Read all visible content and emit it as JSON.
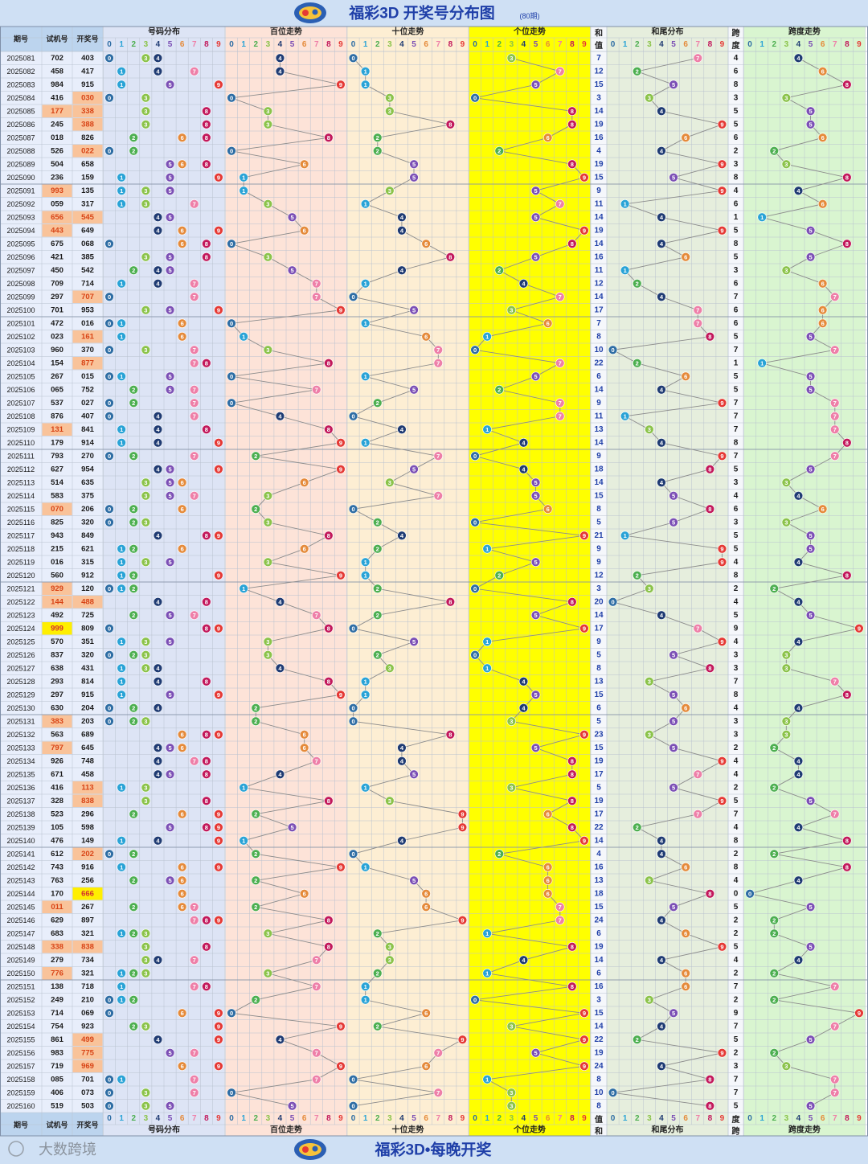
{
  "page": {
    "title": "福彩3D 开奖号分布图",
    "subtitle": "(80期)",
    "footer_title": "福彩3D•每晚开奖",
    "watermark": "大数跨境"
  },
  "chart_data": {
    "type": "table",
    "columns": {
      "issue": "期号",
      "test": "试机号",
      "draw": "开奖号",
      "dist": "号码分布",
      "bai": "百位走势",
      "shi": "十位走势",
      "ge": "个位走势",
      "sum_a": "和",
      "sum_b": "值",
      "tail": "和尾分布",
      "span_a": "跨",
      "span_b": "度",
      "span_trend": "跨度走势"
    },
    "digits": [
      "0",
      "1",
      "2",
      "3",
      "4",
      "5",
      "6",
      "7",
      "8",
      "9"
    ],
    "rows": [
      [
        "2025081",
        "702",
        "403"
      ],
      [
        "2025082",
        "458",
        "417"
      ],
      [
        "2025083",
        "984",
        "915"
      ],
      [
        "2025084",
        "416",
        "030"
      ],
      [
        "2025085",
        "177",
        "338"
      ],
      [
        "2025086",
        "245",
        "388"
      ],
      [
        "2025087",
        "018",
        "826"
      ],
      [
        "2025088",
        "526",
        "022"
      ],
      [
        "2025089",
        "504",
        "658"
      ],
      [
        "2025090",
        "236",
        "159"
      ],
      [
        "2025091",
        "993",
        "135"
      ],
      [
        "2025092",
        "059",
        "317"
      ],
      [
        "2025093",
        "656",
        "545"
      ],
      [
        "2025094",
        "443",
        "649"
      ],
      [
        "2025095",
        "675",
        "068"
      ],
      [
        "2025096",
        "421",
        "385"
      ],
      [
        "2025097",
        "450",
        "542"
      ],
      [
        "2025098",
        "709",
        "714"
      ],
      [
        "2025099",
        "297",
        "707"
      ],
      [
        "2025100",
        "701",
        "953"
      ],
      [
        "2025101",
        "472",
        "016"
      ],
      [
        "2025102",
        "023",
        "161"
      ],
      [
        "2025103",
        "960",
        "370"
      ],
      [
        "2025104",
        "154",
        "877"
      ],
      [
        "2025105",
        "267",
        "015"
      ],
      [
        "2025106",
        "065",
        "752"
      ],
      [
        "2025107",
        "537",
        "027"
      ],
      [
        "2025108",
        "876",
        "407"
      ],
      [
        "2025109",
        "131",
        "841"
      ],
      [
        "2025110",
        "179",
        "914"
      ],
      [
        "2025111",
        "793",
        "270"
      ],
      [
        "2025112",
        "627",
        "954"
      ],
      [
        "2025113",
        "514",
        "635"
      ],
      [
        "2025114",
        "583",
        "375"
      ],
      [
        "2025115",
        "070",
        "206"
      ],
      [
        "2025116",
        "825",
        "320"
      ],
      [
        "2025117",
        "943",
        "849"
      ],
      [
        "2025118",
        "215",
        "621"
      ],
      [
        "2025119",
        "016",
        "315"
      ],
      [
        "2025120",
        "560",
        "912"
      ],
      [
        "2025121",
        "929",
        "120"
      ],
      [
        "2025122",
        "144",
        "488"
      ],
      [
        "2025123",
        "492",
        "725"
      ],
      [
        "2025124",
        "999",
        "809"
      ],
      [
        "2025125",
        "570",
        "351"
      ],
      [
        "2025126",
        "837",
        "320"
      ],
      [
        "2025127",
        "638",
        "431"
      ],
      [
        "2025128",
        "293",
        "814"
      ],
      [
        "2025129",
        "297",
        "915"
      ],
      [
        "2025130",
        "630",
        "204"
      ],
      [
        "2025131",
        "383",
        "203"
      ],
      [
        "2025132",
        "563",
        "689"
      ],
      [
        "2025133",
        "797",
        "645"
      ],
      [
        "2025134",
        "926",
        "748"
      ],
      [
        "2025135",
        "671",
        "458"
      ],
      [
        "2025136",
        "416",
        "113"
      ],
      [
        "2025137",
        "328",
        "838"
      ],
      [
        "2025138",
        "523",
        "296"
      ],
      [
        "2025139",
        "105",
        "598"
      ],
      [
        "2025140",
        "476",
        "149"
      ],
      [
        "2025141",
        "612",
        "202"
      ],
      [
        "2025142",
        "743",
        "916"
      ],
      [
        "2025143",
        "763",
        "256"
      ],
      [
        "2025144",
        "170",
        "666"
      ],
      [
        "2025145",
        "011",
        "267"
      ],
      [
        "2025146",
        "629",
        "897"
      ],
      [
        "2025147",
        "683",
        "321"
      ],
      [
        "2025148",
        "338",
        "838"
      ],
      [
        "2025149",
        "279",
        "734"
      ],
      [
        "2025150",
        "776",
        "321"
      ],
      [
        "2025151",
        "138",
        "718"
      ],
      [
        "2025152",
        "249",
        "210"
      ],
      [
        "2025153",
        "714",
        "069"
      ],
      [
        "2025154",
        "754",
        "923"
      ],
      [
        "2025155",
        "861",
        "499"
      ],
      [
        "2025156",
        "983",
        "775"
      ],
      [
        "2025157",
        "719",
        "969"
      ],
      [
        "2025158",
        "085",
        "701"
      ],
      [
        "2025159",
        "406",
        "073"
      ],
      [
        "2025160",
        "519",
        "503"
      ]
    ],
    "colors": {
      "digit_0": "#2e6da4",
      "digit_1": "#29a3d6",
      "digit_2": "#4caf50",
      "digit_3": "#8bc34a",
      "digit_4": "#1f3b73",
      "digit_5": "#7b4fb5",
      "digit_6": "#e58a3a",
      "digit_7": "#ee7fa8",
      "digit_8": "#c2185b",
      "digit_9": "#e53935",
      "dist_bg": "#dde4f5",
      "bai_bg": "#fde3d8",
      "shi_bg": "#fdeed3",
      "ge_bg": "#ffff00",
      "tail_bg": "#e6eedd",
      "span_bg": "#d9f5d0",
      "header_bg": "#bcd4ee",
      "sum_text": "#1f3fa8",
      "test_pair_bg": "#f9c39a",
      "test_triple_bg": "#ffef00",
      "draw_pair_bg": "#f9c39a",
      "draw_triple_bg": "#ffef00"
    }
  }
}
